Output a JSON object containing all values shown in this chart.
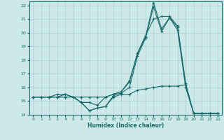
{
  "xlabel": "Humidex (Indice chaleur)",
  "ylabel": "",
  "xlim": [
    -0.5,
    23.5
  ],
  "ylim": [
    14,
    22.3
  ],
  "yticks": [
    14,
    15,
    16,
    17,
    18,
    19,
    20,
    21,
    22
  ],
  "xticks": [
    0,
    1,
    2,
    3,
    4,
    5,
    6,
    7,
    8,
    9,
    10,
    11,
    12,
    13,
    14,
    15,
    16,
    17,
    18,
    19,
    20,
    21,
    22,
    23
  ],
  "background_color": "#cce8e8",
  "grid_color": "#aacfcf",
  "line_color": "#1a6b6b",
  "series": [
    [
      15.3,
      15.3,
      15.3,
      15.3,
      15.3,
      15.3,
      15.3,
      15.3,
      15.3,
      15.3,
      15.5,
      15.7,
      16.4,
      18.5,
      19.7,
      22.2,
      20.3,
      21.1,
      20.4,
      16.2,
      14.1,
      14.1,
      14.1,
      14.1
    ],
    [
      15.3,
      15.3,
      15.3,
      15.3,
      15.5,
      15.3,
      14.9,
      14.3,
      14.5,
      14.6,
      15.3,
      15.5,
      15.5,
      15.8,
      15.9,
      16.0,
      16.1,
      16.1,
      16.1,
      16.2,
      14.1,
      14.1,
      14.1,
      14.1
    ],
    [
      15.3,
      15.3,
      15.3,
      15.5,
      15.5,
      15.3,
      14.9,
      14.3,
      14.5,
      14.6,
      15.4,
      15.6,
      16.0,
      18.3,
      19.6,
      21.9,
      20.1,
      21.1,
      20.2,
      16.0,
      14.1,
      14.1,
      14.1,
      14.1
    ],
    [
      15.3,
      15.3,
      15.3,
      15.3,
      15.3,
      15.3,
      14.9,
      14.9,
      14.7,
      15.3,
      15.5,
      15.7,
      16.5,
      18.5,
      19.8,
      21.0,
      21.2,
      21.2,
      20.5,
      16.3,
      14.1,
      14.1,
      14.1,
      14.1
    ]
  ]
}
